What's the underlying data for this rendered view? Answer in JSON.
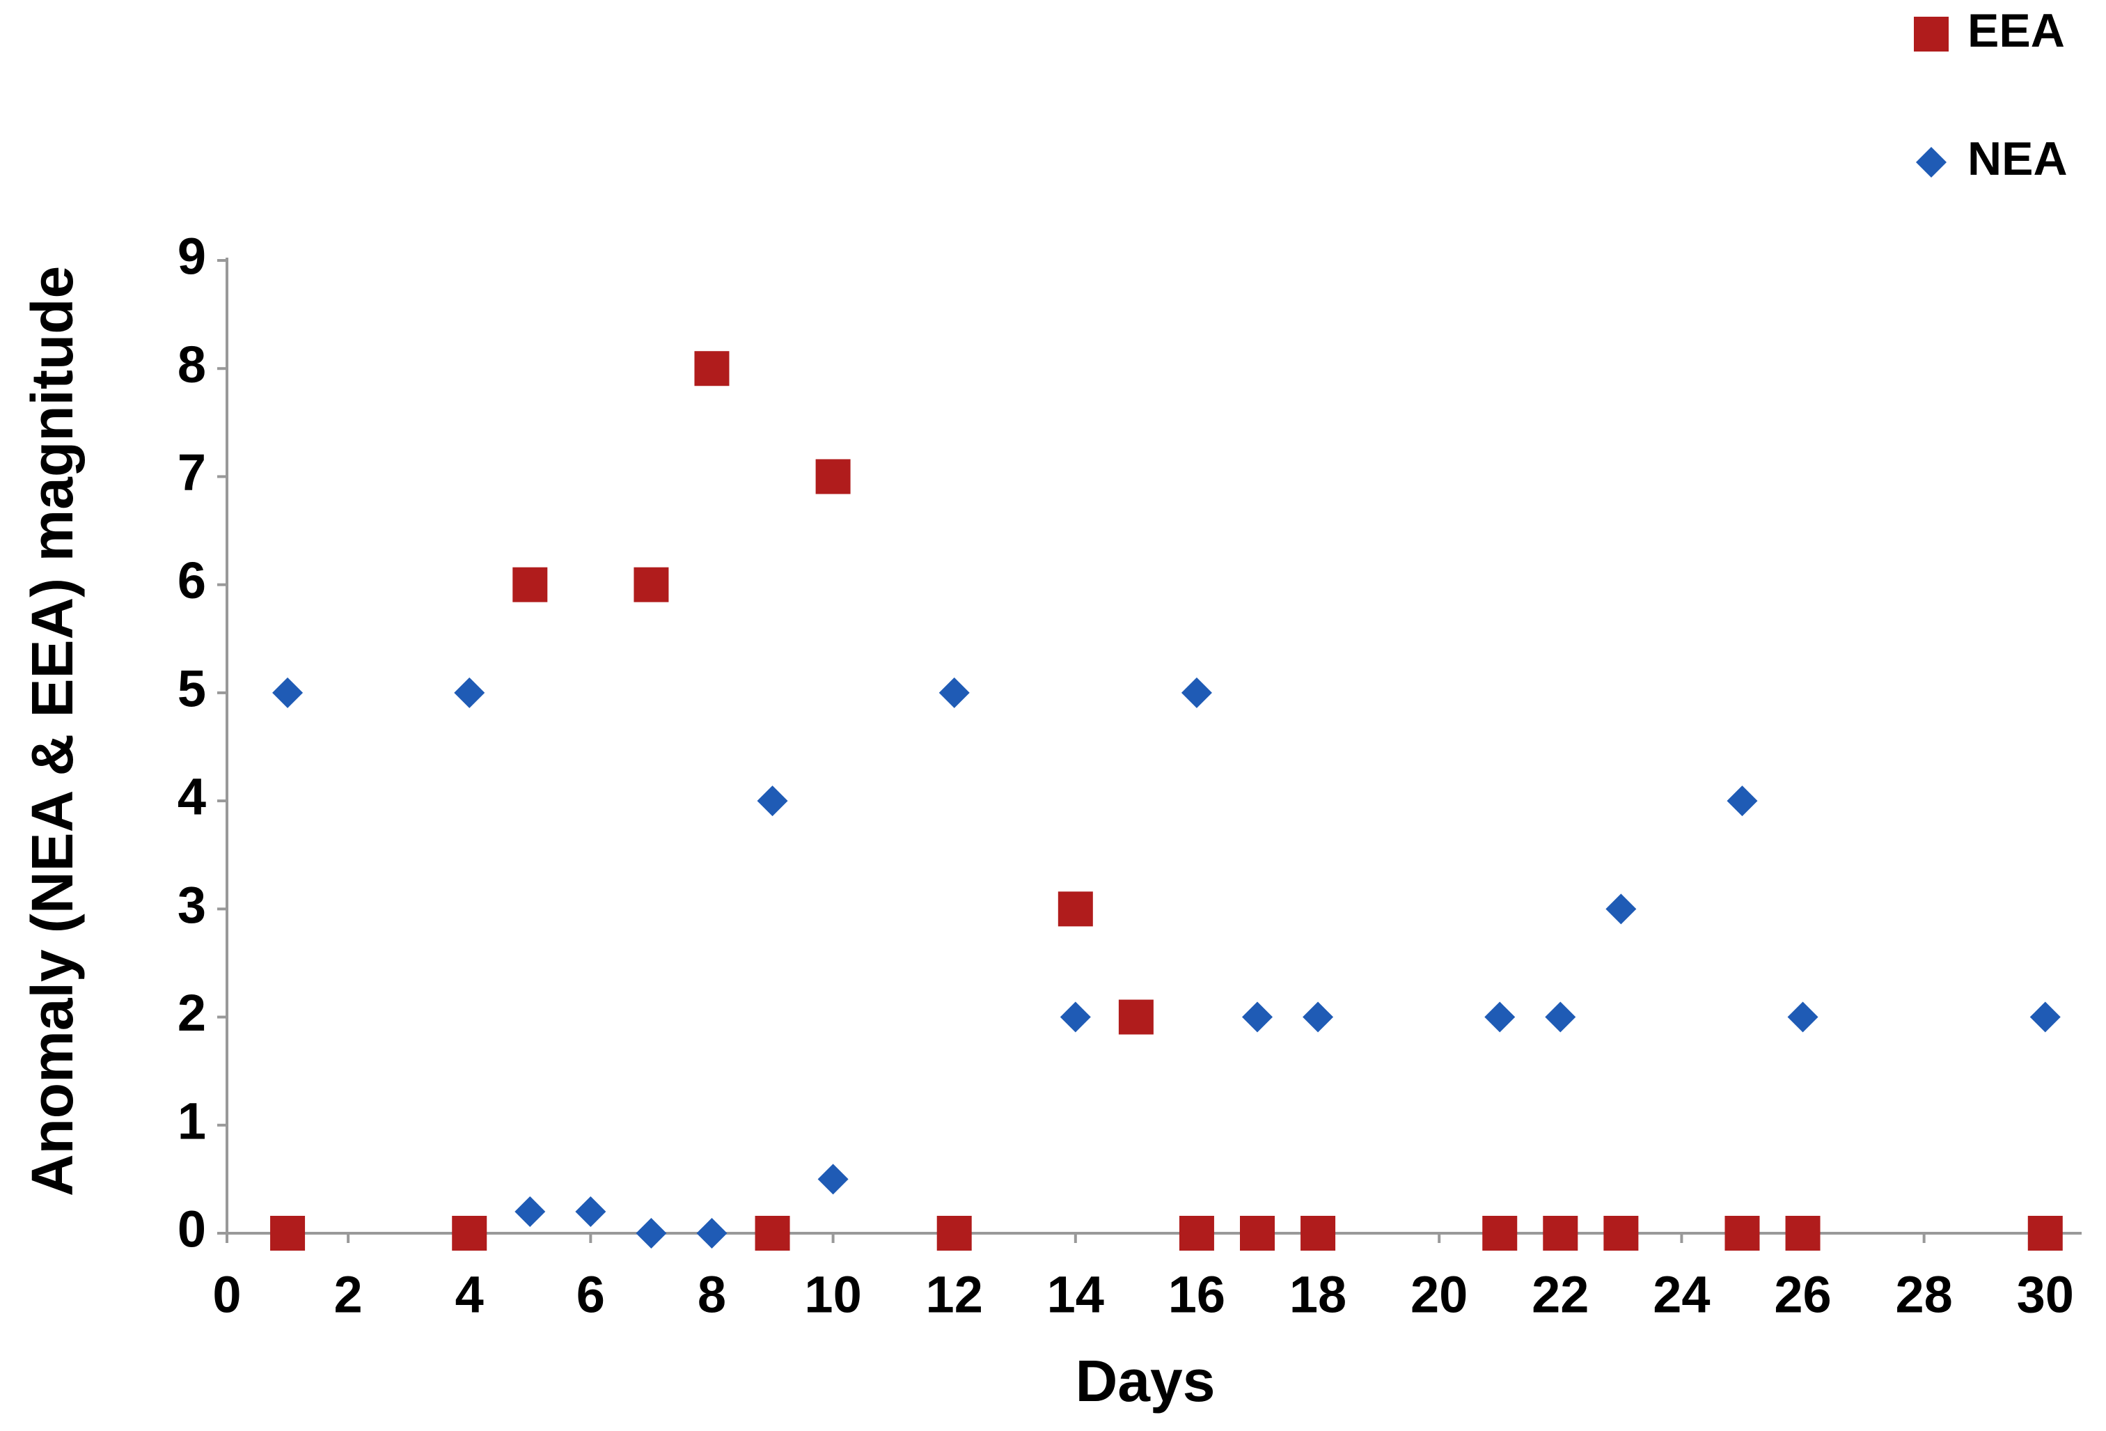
{
  "chart_data": {
    "type": "scatter",
    "x_label": "Days",
    "y_label": "Anomaly (NEA & EEA) magnitude",
    "xlim": [
      0,
      30.6
    ],
    "ylim": [
      0,
      9
    ],
    "xticks": [
      0,
      2,
      4,
      6,
      8,
      10,
      12,
      14,
      16,
      18,
      20,
      22,
      24,
      26,
      28,
      30
    ],
    "yticks": [
      0,
      1,
      2,
      3,
      4,
      5,
      6,
      7,
      8,
      9
    ],
    "grid": false,
    "legend": "top-right",
    "series": [
      {
        "name": "EEA",
        "color": "#b01c1c",
        "marker": "square",
        "x": [
          1,
          4,
          5,
          7,
          8,
          9,
          10,
          12,
          14,
          15,
          16,
          17,
          18,
          21,
          22,
          23,
          25,
          26,
          30
        ],
        "values": [
          0,
          0,
          6,
          6,
          8,
          0,
          7,
          0,
          3,
          2,
          0,
          0,
          0,
          0,
          0,
          0,
          0,
          0,
          0
        ]
      },
      {
        "name": "NEA",
        "color": "#1f5bb5",
        "marker": "diamond",
        "x": [
          1,
          4,
          5,
          6,
          7,
          8,
          9,
          10,
          12,
          14,
          16,
          17,
          18,
          21,
          22,
          23,
          25,
          26,
          30
        ],
        "values": [
          5,
          5,
          0.2,
          0.2,
          0,
          0,
          4,
          0.5,
          5,
          2,
          5,
          2,
          2,
          2,
          2,
          3,
          4,
          2,
          2
        ]
      }
    ]
  }
}
